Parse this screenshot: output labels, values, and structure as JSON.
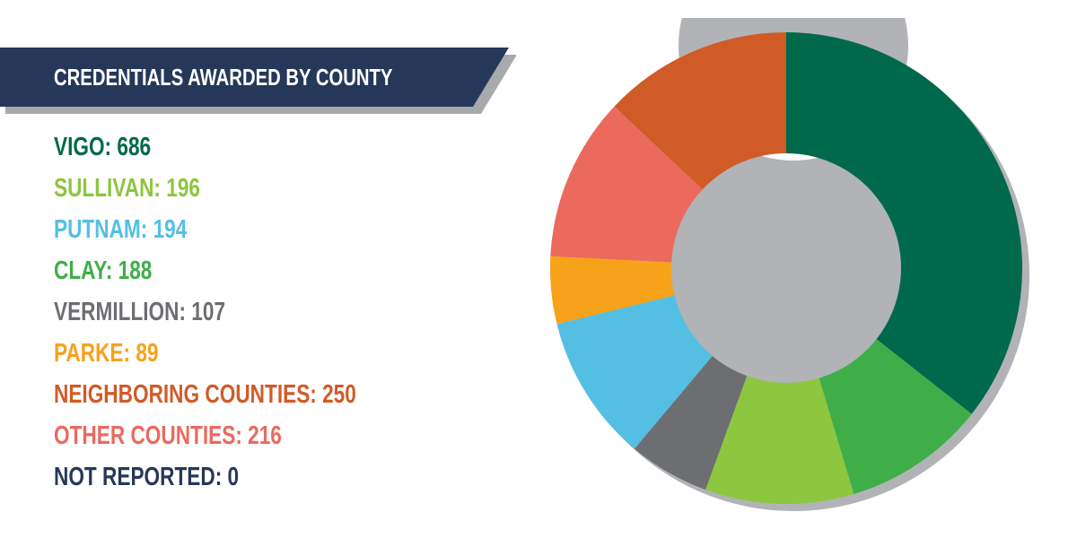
{
  "header": {
    "title": "CREDENTIALS AWARDED BY COUNTY"
  },
  "colors": {
    "banner": "#263859",
    "banner_shadow": "#a7a9ac",
    "chart_shadow": "#b1b3b6"
  },
  "chart_data": {
    "type": "pie",
    "subtype": "donut",
    "title": "CREDENTIALS AWARDED BY COUNTY",
    "legend_placement": "left",
    "slices": [
      {
        "label": "VIGO",
        "value": 686,
        "color": "#00694b",
        "text": "VIGO: 686"
      },
      {
        "label": "SULLIVAN",
        "value": 196,
        "color": "#8dc63f",
        "text": "SULLIVAN: 196"
      },
      {
        "label": "PUTNAM",
        "value": 194,
        "color": "#54bfe3",
        "text": "PUTNAM: 194"
      },
      {
        "label": "CLAY",
        "value": 188,
        "color": "#3fae49",
        "text": "CLAY: 188"
      },
      {
        "label": "VERMILLION",
        "value": 107,
        "color": "#6d6e71",
        "text": "VERMILLION: 107"
      },
      {
        "label": "PARKE",
        "value": 89,
        "color": "#f7a21b",
        "text": "PARKE: 89"
      },
      {
        "label": "NEIGHBORING COUNTIES",
        "value": 250,
        "color": "#d15b27",
        "text": "NEIGHBORING COUNTIES: 250"
      },
      {
        "label": "OTHER COUNTIES",
        "value": 216,
        "color": "#ec695e",
        "text": "OTHER COUNTIES: 216"
      },
      {
        "label": "NOT REPORTED",
        "value": 0,
        "color": "#263859",
        "text": "NOT REPORTED: 0"
      }
    ],
    "draw_order": [
      "VIGO",
      "CLAY",
      "SULLIVAN",
      "VERMILLION",
      "PUTNAM",
      "PARKE",
      "OTHER COUNTIES",
      "NEIGHBORING COUNTIES"
    ]
  }
}
